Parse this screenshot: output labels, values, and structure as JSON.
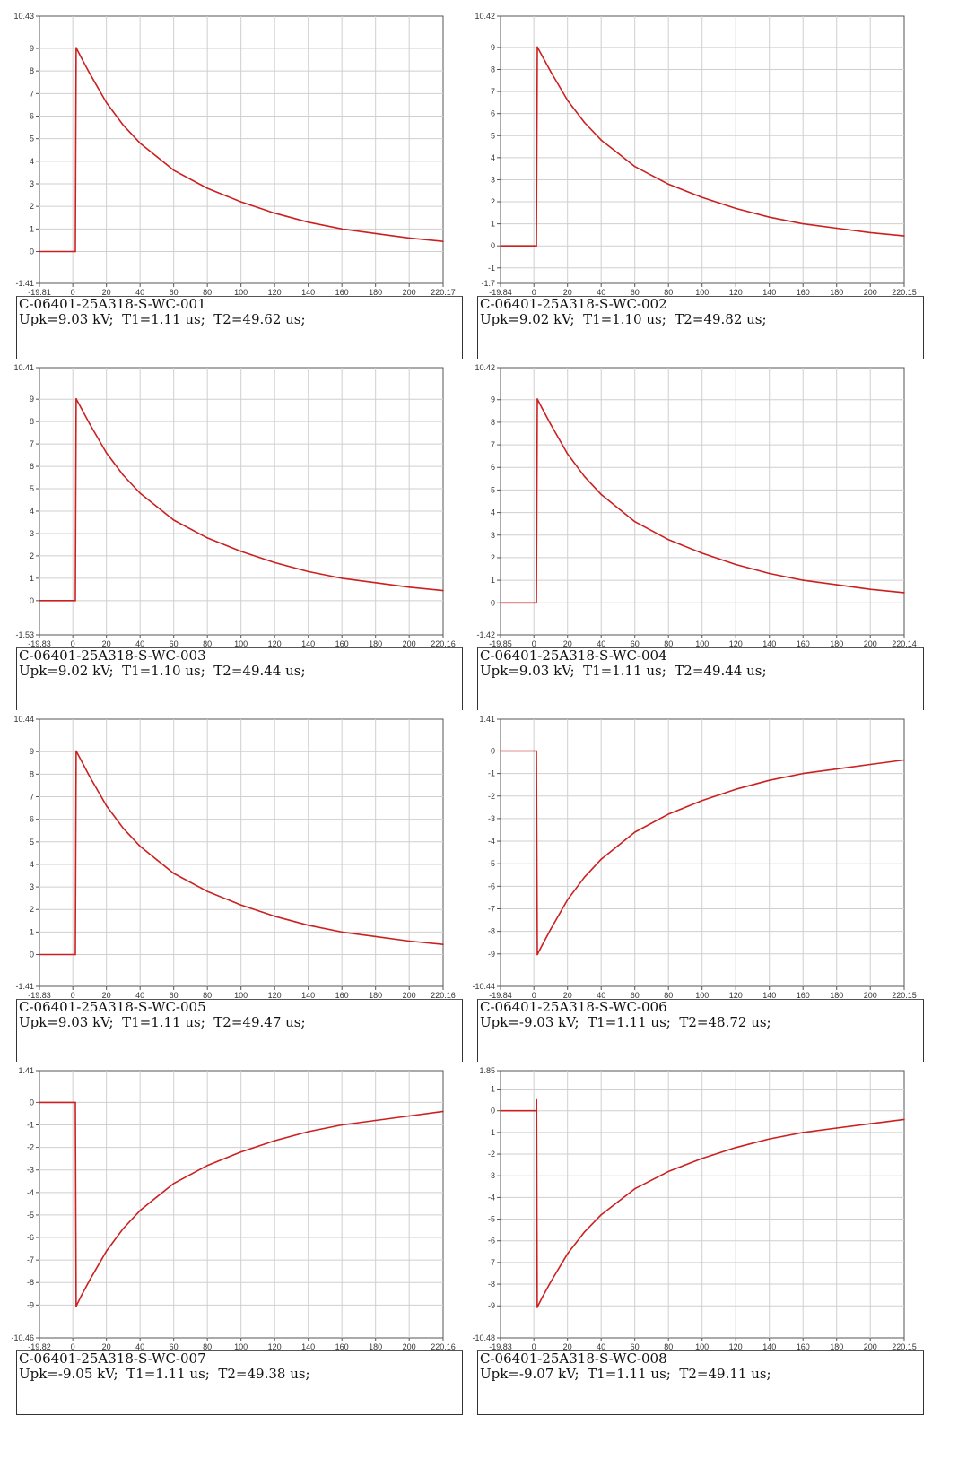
{
  "styles": {
    "trace_color": "#cc2020",
    "grid_color": "#cfcfcf",
    "axis_color": "#555555"
  },
  "panels": [
    {
      "id": "C-06401-25A318-S-WC-001",
      "result": "Upk=9.03 kV;  T1=1.11 us;  T2=49.62 us;",
      "chart_data": {
        "type": "line",
        "title": "",
        "xlabel": "",
        "ylabel": "",
        "xlim": [
          -19.81,
          220.17
        ],
        "ylim": [
          -1.41,
          10.43
        ],
        "x_ticks": [
          "-19.81",
          "0",
          "20",
          "40",
          "60",
          "80",
          "100",
          "120",
          "140",
          "160",
          "180",
          "200",
          "220.17"
        ],
        "y_ticks": [
          "-1.41",
          "0",
          "1",
          "2",
          "3",
          "4",
          "5",
          "6",
          "7",
          "8",
          "9",
          "10.43"
        ],
        "x_tick_values": [
          -19.81,
          0,
          20,
          40,
          60,
          80,
          100,
          120,
          140,
          160,
          180,
          200,
          220.17
        ],
        "y_tick_values": [
          -1.41,
          0,
          1,
          2,
          3,
          4,
          5,
          6,
          7,
          8,
          9,
          10.43
        ],
        "series": [
          {
            "x": [
              -19.81,
              1.5,
              2,
              5,
              10,
              20,
              30,
              40,
              50,
              60,
              80,
              100,
              120,
              140,
              160,
              180,
              200,
              220.17
            ],
            "y": [
              0,
              0,
              9.03,
              8.6,
              7.9,
              6.6,
              5.6,
              4.8,
              4.2,
              3.6,
              2.8,
              2.2,
              1.7,
              1.3,
              1.0,
              0.8,
              0.6,
              0.45
            ]
          }
        ]
      }
    },
    {
      "id": "C-06401-25A318-S-WC-002",
      "result": "Upk=9.02 kV;  T1=1.10 us;  T2=49.82 us;",
      "chart_data": {
        "type": "line",
        "title": "",
        "xlabel": "",
        "ylabel": "",
        "xlim": [
          -19.84,
          220.15
        ],
        "ylim": [
          -1.7,
          10.42
        ],
        "x_ticks": [
          "-19.84",
          "0",
          "20",
          "40",
          "60",
          "80",
          "100",
          "120",
          "140",
          "160",
          "180",
          "200",
          "220.15"
        ],
        "y_ticks": [
          "-1.7",
          "-1",
          "0",
          "1",
          "2",
          "3",
          "4",
          "5",
          "6",
          "7",
          "8",
          "9",
          "10.42"
        ],
        "x_tick_values": [
          -19.84,
          0,
          20,
          40,
          60,
          80,
          100,
          120,
          140,
          160,
          180,
          200,
          220.15
        ],
        "y_tick_values": [
          -1.7,
          -1,
          0,
          1,
          2,
          3,
          4,
          5,
          6,
          7,
          8,
          9,
          10.42
        ],
        "series": [
          {
            "x": [
              -19.84,
              1.5,
              2,
              5,
              10,
              20,
              30,
              40,
              50,
              60,
              80,
              100,
              120,
              140,
              160,
              180,
              200,
              220.15
            ],
            "y": [
              0,
              0,
              9.02,
              8.6,
              7.9,
              6.6,
              5.6,
              4.8,
              4.2,
              3.6,
              2.8,
              2.2,
              1.7,
              1.3,
              1.0,
              0.8,
              0.6,
              0.45
            ]
          }
        ]
      }
    },
    {
      "id": "C-06401-25A318-S-WC-003",
      "result": "Upk=9.02 kV;  T1=1.10 us;  T2=49.44 us;",
      "chart_data": {
        "type": "line",
        "title": "",
        "xlabel": "",
        "ylabel": "",
        "xlim": [
          -19.83,
          220.16
        ],
        "ylim": [
          -1.53,
          10.41
        ],
        "x_ticks": [
          "-19.83",
          "0",
          "20",
          "40",
          "60",
          "80",
          "100",
          "120",
          "140",
          "160",
          "180",
          "200",
          "220.16"
        ],
        "y_ticks": [
          "-1.53",
          "0",
          "1",
          "2",
          "3",
          "4",
          "5",
          "6",
          "7",
          "8",
          "9",
          "10.41"
        ],
        "x_tick_values": [
          -19.83,
          0,
          20,
          40,
          60,
          80,
          100,
          120,
          140,
          160,
          180,
          200,
          220.16
        ],
        "y_tick_values": [
          -1.53,
          0,
          1,
          2,
          3,
          4,
          5,
          6,
          7,
          8,
          9,
          10.41
        ],
        "series": [
          {
            "x": [
              -19.83,
              1.5,
              2,
              5,
              10,
              20,
              30,
              40,
              50,
              60,
              80,
              100,
              120,
              140,
              160,
              180,
              200,
              220.16
            ],
            "y": [
              0,
              0,
              9.02,
              8.6,
              7.9,
              6.6,
              5.6,
              4.8,
              4.2,
              3.6,
              2.8,
              2.2,
              1.7,
              1.3,
              1.0,
              0.8,
              0.6,
              0.45
            ]
          }
        ]
      }
    },
    {
      "id": "C-06401-25A318-S-WC-004",
      "result": "Upk=9.03 kV;  T1=1.11 us;  T2=49.44 us;",
      "chart_data": {
        "type": "line",
        "title": "",
        "xlabel": "",
        "ylabel": "",
        "xlim": [
          -19.85,
          220.14
        ],
        "ylim": [
          -1.42,
          10.42
        ],
        "x_ticks": [
          "-19.85",
          "0",
          "20",
          "40",
          "60",
          "80",
          "100",
          "120",
          "140",
          "160",
          "180",
          "200",
          "220.14"
        ],
        "y_ticks": [
          "-1.42",
          "0",
          "1",
          "2",
          "3",
          "4",
          "5",
          "6",
          "7",
          "8",
          "9",
          "10.42"
        ],
        "x_tick_values": [
          -19.85,
          0,
          20,
          40,
          60,
          80,
          100,
          120,
          140,
          160,
          180,
          200,
          220.14
        ],
        "y_tick_values": [
          -1.42,
          0,
          1,
          2,
          3,
          4,
          5,
          6,
          7,
          8,
          9,
          10.42
        ],
        "series": [
          {
            "x": [
              -19.85,
              1.5,
              2,
              5,
              10,
              20,
              30,
              40,
              50,
              60,
              80,
              100,
              120,
              140,
              160,
              180,
              200,
              220.14
            ],
            "y": [
              0,
              0,
              9.03,
              8.6,
              7.9,
              6.6,
              5.6,
              4.8,
              4.2,
              3.6,
              2.8,
              2.2,
              1.7,
              1.3,
              1.0,
              0.8,
              0.6,
              0.45
            ]
          }
        ]
      }
    },
    {
      "id": "C-06401-25A318-S-WC-005",
      "result": "Upk=9.03 kV;  T1=1.11 us;  T2=49.47 us;",
      "chart_data": {
        "type": "line",
        "title": "",
        "xlabel": "",
        "ylabel": "",
        "xlim": [
          -19.83,
          220.16
        ],
        "ylim": [
          -1.41,
          10.44
        ],
        "x_ticks": [
          "-19.83",
          "0",
          "20",
          "40",
          "60",
          "80",
          "100",
          "120",
          "140",
          "160",
          "180",
          "200",
          "220.16"
        ],
        "y_ticks": [
          "-1.41",
          "0",
          "1",
          "2",
          "3",
          "4",
          "5",
          "6",
          "7",
          "8",
          "9",
          "10.44"
        ],
        "x_tick_values": [
          -19.83,
          0,
          20,
          40,
          60,
          80,
          100,
          120,
          140,
          160,
          180,
          200,
          220.16
        ],
        "y_tick_values": [
          -1.41,
          0,
          1,
          2,
          3,
          4,
          5,
          6,
          7,
          8,
          9,
          10.44
        ],
        "series": [
          {
            "x": [
              -19.83,
              1.5,
              2,
              5,
              10,
              20,
              30,
              40,
              50,
              60,
              80,
              100,
              120,
              140,
              160,
              180,
              200,
              220.16
            ],
            "y": [
              0,
              0,
              9.03,
              8.6,
              7.9,
              6.6,
              5.6,
              4.8,
              4.2,
              3.6,
              2.8,
              2.2,
              1.7,
              1.3,
              1.0,
              0.8,
              0.6,
              0.45
            ]
          }
        ]
      }
    },
    {
      "id": "C-06401-25A318-S-WC-006",
      "result": "Upk=-9.03 kV;  T1=1.11 us;  T2=48.72 us;",
      "chart_data": {
        "type": "line",
        "title": "",
        "xlabel": "",
        "ylabel": "",
        "xlim": [
          -19.84,
          220.15
        ],
        "ylim": [
          -10.44,
          1.41
        ],
        "x_ticks": [
          "-19.84",
          "0",
          "20",
          "40",
          "60",
          "80",
          "100",
          "120",
          "140",
          "160",
          "180",
          "200",
          "220.15"
        ],
        "y_ticks": [
          "-10.44",
          "-9",
          "-8",
          "-7",
          "-6",
          "-5",
          "-4",
          "-3",
          "-2",
          "-1",
          "0",
          "1.41"
        ],
        "x_tick_values": [
          -19.84,
          0,
          20,
          40,
          60,
          80,
          100,
          120,
          140,
          160,
          180,
          200,
          220.15
        ],
        "y_tick_values": [
          -10.44,
          -9,
          -8,
          -7,
          -6,
          -5,
          -4,
          -3,
          -2,
          -1,
          0,
          1.41
        ],
        "series": [
          {
            "x": [
              -19.84,
              1.5,
              2,
              5,
              10,
              20,
              30,
              40,
              50,
              60,
              80,
              100,
              120,
              140,
              160,
              180,
              200,
              220.15
            ],
            "y": [
              0,
              0,
              -9.03,
              -8.6,
              -7.9,
              -6.6,
              -5.6,
              -4.8,
              -4.2,
              -3.6,
              -2.8,
              -2.2,
              -1.7,
              -1.3,
              -1.0,
              -0.8,
              -0.6,
              -0.4
            ]
          }
        ]
      }
    },
    {
      "id": "C-06401-25A318-S-WC-007",
      "result": "Upk=-9.05 kV;  T1=1.11 us;  T2=49.38 us;",
      "chart_data": {
        "type": "line",
        "title": "",
        "xlabel": "",
        "ylabel": "",
        "xlim": [
          -19.82,
          220.16
        ],
        "ylim": [
          -10.46,
          1.41
        ],
        "x_ticks": [
          "-19.82",
          "0",
          "20",
          "40",
          "60",
          "80",
          "100",
          "120",
          "140",
          "160",
          "180",
          "200",
          "220.16"
        ],
        "y_ticks": [
          "-10.46",
          "-9",
          "-8",
          "-7",
          "-6",
          "-5",
          "-4",
          "-3",
          "-2",
          "-1",
          "0",
          "1.41"
        ],
        "x_tick_values": [
          -19.82,
          0,
          20,
          40,
          60,
          80,
          100,
          120,
          140,
          160,
          180,
          200,
          220.16
        ],
        "y_tick_values": [
          -10.46,
          -9,
          -8,
          -7,
          -6,
          -5,
          -4,
          -3,
          -2,
          -1,
          0,
          1.41
        ],
        "series": [
          {
            "x": [
              -19.82,
              1.5,
              2,
              5,
              10,
              20,
              30,
              40,
              50,
              60,
              80,
              100,
              120,
              140,
              160,
              180,
              200,
              220.16
            ],
            "y": [
              0,
              0,
              -9.05,
              -8.6,
              -7.9,
              -6.6,
              -5.6,
              -4.8,
              -4.2,
              -3.6,
              -2.8,
              -2.2,
              -1.7,
              -1.3,
              -1.0,
              -0.8,
              -0.6,
              -0.4
            ]
          }
        ]
      }
    },
    {
      "id": "C-06401-25A318-S-WC-008",
      "result": "Upk=-9.07 kV;  T1=1.11 us;  T2=49.11 us;",
      "chart_data": {
        "type": "line",
        "title": "",
        "xlabel": "",
        "ylabel": "",
        "xlim": [
          -19.83,
          220.15
        ],
        "ylim": [
          -10.48,
          1.85
        ],
        "x_ticks": [
          "-19.83",
          "0",
          "20",
          "40",
          "60",
          "80",
          "100",
          "120",
          "140",
          "160",
          "180",
          "200",
          "220.15"
        ],
        "y_ticks": [
          "-10.48",
          "-9",
          "-8",
          "-7",
          "-6",
          "-5",
          "-4",
          "-3",
          "-2",
          "-1",
          "0",
          "1",
          "1.85"
        ],
        "x_tick_values": [
          -19.83,
          0,
          20,
          40,
          60,
          80,
          100,
          120,
          140,
          160,
          180,
          200,
          220.15
        ],
        "y_tick_values": [
          -10.48,
          -9,
          -8,
          -7,
          -6,
          -5,
          -4,
          -3,
          -2,
          -1,
          0,
          1,
          1.85
        ],
        "series": [
          {
            "x": [
              -19.83,
              1.5,
              1.6,
              2,
              5,
              10,
              20,
              30,
              40,
              50,
              60,
              80,
              100,
              120,
              140,
              160,
              180,
              200,
              220.15
            ],
            "y": [
              0,
              0,
              0.5,
              -9.07,
              -8.6,
              -7.9,
              -6.6,
              -5.6,
              -4.8,
              -4.2,
              -3.6,
              -2.8,
              -2.2,
              -1.7,
              -1.3,
              -1.0,
              -0.8,
              -0.6,
              -0.4
            ]
          }
        ]
      }
    }
  ]
}
